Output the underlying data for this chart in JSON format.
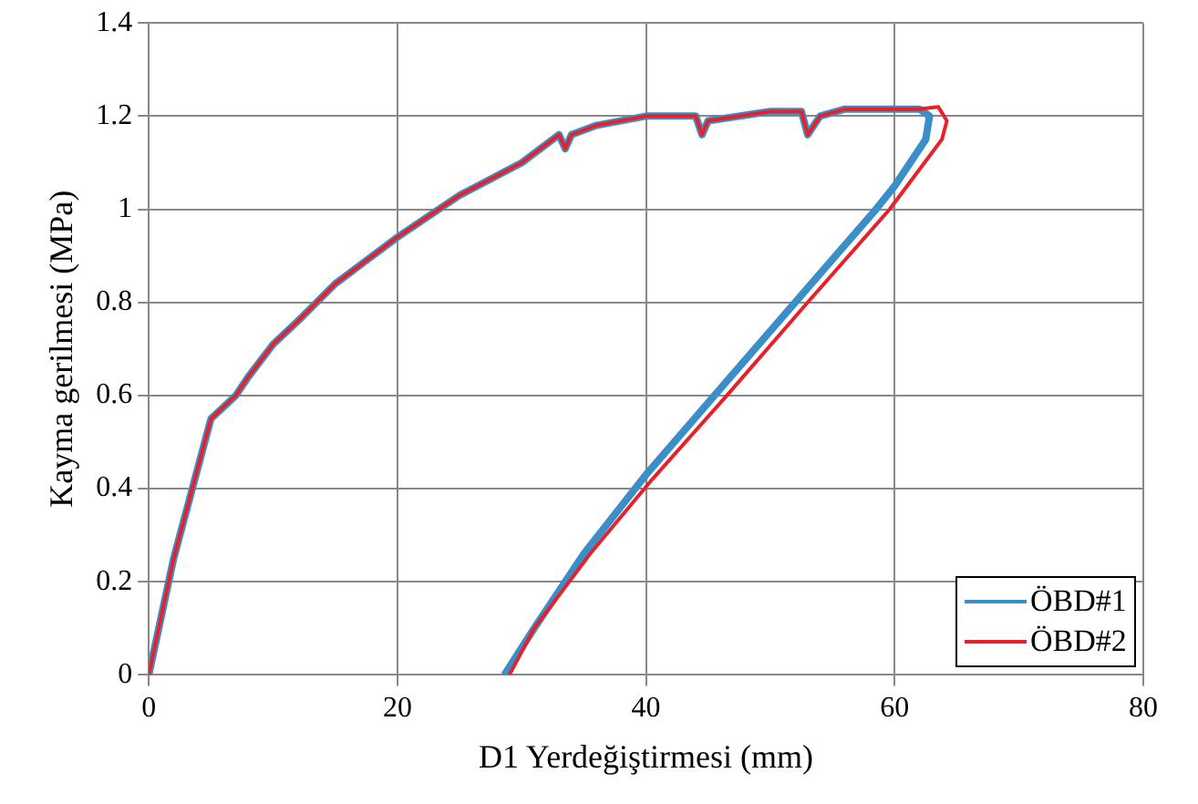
{
  "chart_data": {
    "type": "line",
    "xlabel": "D1 Yerdeğiştirmesi (mm)",
    "ylabel": "Kayma gerilmesi (MPa)",
    "xlim": [
      0,
      80
    ],
    "xticks": [
      0,
      20,
      40,
      60,
      80
    ],
    "ylim": [
      0,
      1.4
    ],
    "yticks": [
      0,
      0.2,
      0.4,
      0.6,
      0.8,
      1,
      1.2,
      1.4
    ],
    "grid": true,
    "legend": "bottom right",
    "marker": "none",
    "line_style": "solid",
    "series": [
      {
        "name": "ÖBD#1",
        "color": "#3a8fc8",
        "x": [
          0,
          2,
          4,
          5,
          7,
          8,
          10,
          12,
          15,
          18,
          20,
          25,
          30,
          33,
          33.5,
          34,
          36,
          40,
          44,
          44.5,
          45,
          50,
          52.5,
          53,
          54,
          56,
          62,
          62.8,
          62.5,
          60,
          58.5,
          52,
          45.5,
          40,
          35,
          31,
          28.6
        ],
        "values": [
          0,
          0.25,
          0.45,
          0.55,
          0.6,
          0.64,
          0.71,
          0.76,
          0.84,
          0.9,
          0.94,
          1.03,
          1.1,
          1.16,
          1.13,
          1.16,
          1.18,
          1.2,
          1.2,
          1.16,
          1.19,
          1.21,
          1.21,
          1.16,
          1.2,
          1.215,
          1.215,
          1.2,
          1.15,
          1.05,
          1,
          0.8,
          0.6,
          0.43,
          0.26,
          0.1,
          0
        ]
      },
      {
        "name": "ÖBD#2",
        "color": "#e8202a",
        "x": [
          0,
          2,
          4,
          5,
          7,
          8,
          10,
          12,
          15,
          18,
          20,
          25,
          30,
          33,
          33.5,
          34,
          36,
          40,
          44,
          44.5,
          45,
          50,
          52.5,
          53,
          54,
          56,
          62,
          63.5,
          64.2,
          63.8,
          61,
          59.6,
          53,
          46.5,
          40.5,
          35.5,
          31,
          29
        ],
        "values": [
          0,
          0.25,
          0.45,
          0.55,
          0.6,
          0.64,
          0.71,
          0.76,
          0.84,
          0.9,
          0.94,
          1.03,
          1.1,
          1.16,
          1.13,
          1.16,
          1.18,
          1.2,
          1.2,
          1.16,
          1.19,
          1.21,
          1.21,
          1.16,
          1.2,
          1.215,
          1.215,
          1.22,
          1.19,
          1.15,
          1.05,
          1,
          0.8,
          0.6,
          0.42,
          0.26,
          0.1,
          0
        ]
      }
    ]
  }
}
